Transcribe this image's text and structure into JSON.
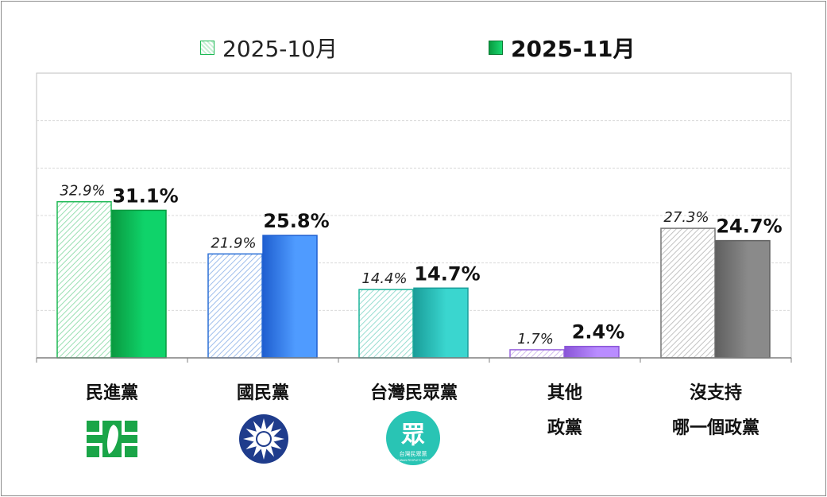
{
  "legend": {
    "series_a": "2025-10月",
    "series_b": "2025-11月"
  },
  "categories": [
    {
      "lines": [
        "民進黨"
      ],
      "logo": "dpp-logo-icon"
    },
    {
      "lines": [
        "國民黨"
      ],
      "logo": "kmt-logo-icon"
    },
    {
      "lines": [
        "台灣民眾黨"
      ],
      "logo": "tpp-logo-icon"
    },
    {
      "lines": [
        "其他",
        "政黨"
      ],
      "logo": ""
    },
    {
      "lines": [
        "沒支持",
        "哪一個政黨"
      ],
      "logo": ""
    }
  ],
  "logos": {
    "tpp_glyph": "眾",
    "tpp_name": "台灣民眾黨",
    "tpp_english": "TAIWAN PEOPLE'S PARTY"
  },
  "chart_data": {
    "type": "bar",
    "categories": [
      "民進黨",
      "國民黨",
      "台灣民眾黨",
      "其他政黨",
      "沒支持哪一個政黨"
    ],
    "series": [
      {
        "name": "2025-10月",
        "values": [
          32.9,
          21.9,
          14.4,
          1.7,
          27.3
        ],
        "labels": [
          "32.9%",
          "21.9%",
          "14.4%",
          "1.7%",
          "27.3%"
        ]
      },
      {
        "name": "2025-11月",
        "values": [
          31.1,
          25.8,
          14.7,
          2.4,
          24.7
        ],
        "labels": [
          "31.1%",
          "25.8%",
          "14.7%",
          "2.4%",
          "24.7%"
        ]
      }
    ],
    "ylim": [
      0,
      60
    ],
    "grid": true,
    "legend_position": "top",
    "colors": {
      "series_a": [
        "#1db954",
        "#2a6fd6",
        "#1ab39a",
        "#9966dd",
        "#777777"
      ],
      "series_b_light": [
        "#0fd36a",
        "#4f9bff",
        "#3ad6cf",
        "#b98cff",
        "#8a8a8a"
      ],
      "series_b_dark": [
        "#0a9a40",
        "#1f5fd0",
        "#1a9e9a",
        "#8a55d8",
        "#606060"
      ]
    }
  }
}
